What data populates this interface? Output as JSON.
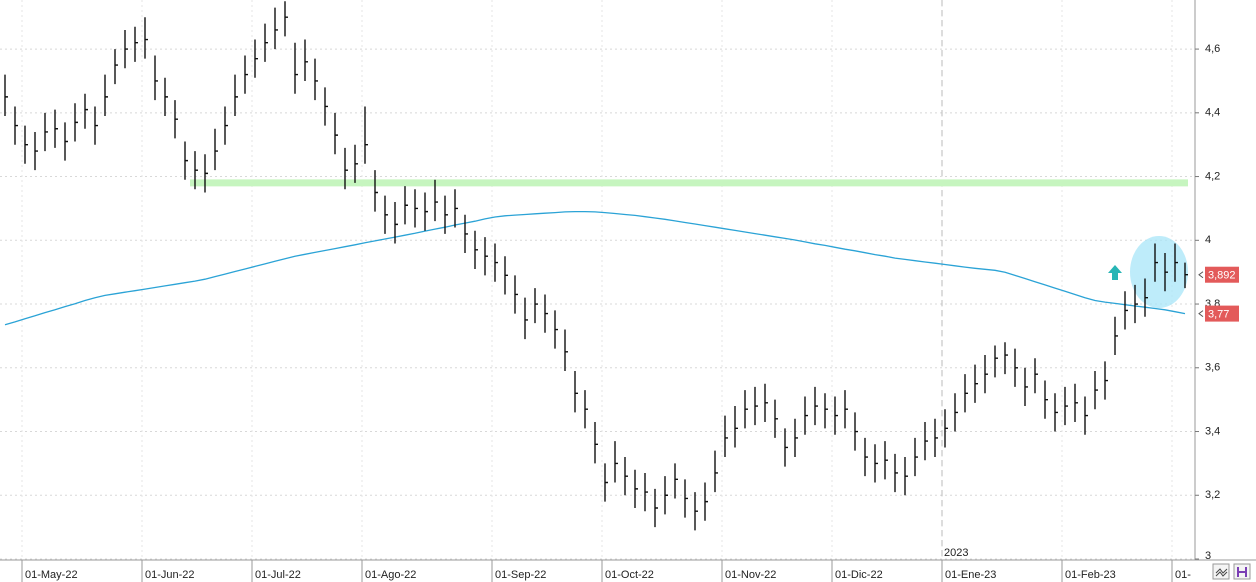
{
  "chart_data": {
    "type": "ohlc",
    "categories": [
      null,
      null,
      "01-May-22",
      null,
      null,
      null,
      null,
      null,
      null,
      null,
      null,
      null,
      null,
      null,
      "01-Jun-22",
      null,
      null,
      null,
      null,
      null,
      null,
      null,
      null,
      null,
      null,
      "01-Jul-22",
      null,
      null,
      null,
      null,
      null,
      null,
      null,
      null,
      null,
      null,
      "01-Ago-22",
      null,
      null,
      null,
      null,
      null,
      null,
      null,
      null,
      null,
      null,
      null,
      null,
      "01-Sep-22",
      null,
      null,
      null,
      null,
      null,
      null,
      null,
      null,
      null,
      null,
      "01-Oct-22",
      null,
      null,
      null,
      null,
      null,
      null,
      null,
      null,
      null,
      null,
      null,
      "01-Nov-22",
      null,
      null,
      null,
      null,
      null,
      null,
      null,
      null,
      null,
      null,
      "01-Dic-22",
      null,
      null,
      null,
      null,
      null,
      null,
      null,
      null,
      null,
      null,
      "01-Ene-23",
      null,
      null,
      null,
      null,
      null,
      null,
      null,
      null,
      null,
      null,
      null,
      "01-Feb-23",
      null,
      null,
      null,
      null,
      null,
      null,
      null,
      null,
      null,
      null,
      "01-",
      null
    ],
    "high": [
      4.52,
      4.42,
      4.36,
      4.34,
      4.4,
      4.41,
      4.37,
      4.43,
      4.46,
      4.42,
      4.52,
      4.6,
      4.66,
      4.67,
      4.7,
      4.58,
      4.51,
      4.44,
      4.31,
      4.28,
      4.27,
      4.35,
      4.42,
      4.52,
      4.58,
      4.63,
      4.68,
      4.73,
      4.75,
      4.62,
      4.63,
      4.57,
      4.48,
      4.4,
      4.29,
      4.3,
      4.42,
      4.22,
      4.14,
      4.12,
      4.17,
      4.16,
      4.15,
      4.19,
      4.14,
      4.16,
      4.08,
      4.03,
      4.01,
      3.99,
      3.95,
      3.89,
      3.82,
      3.85,
      3.83,
      3.78,
      3.72,
      3.59,
      3.53,
      3.43,
      3.3,
      3.37,
      3.32,
      3.28,
      3.27,
      3.22,
      3.26,
      3.3,
      3.25,
      3.21,
      3.24,
      3.34,
      3.45,
      3.48,
      3.53,
      3.54,
      3.55,
      3.5,
      3.41,
      3.44,
      3.51,
      3.54,
      3.52,
      3.51,
      3.53,
      3.46,
      3.38,
      3.36,
      3.37,
      3.33,
      3.32,
      3.38,
      3.43,
      3.44,
      3.47,
      3.52,
      3.58,
      3.61,
      3.64,
      3.67,
      3.68,
      3.66,
      3.6,
      3.63,
      3.56,
      3.52,
      3.54,
      3.55,
      3.51,
      3.59,
      3.62,
      3.76,
      3.84,
      3.86,
      3.88,
      3.99,
      3.96,
      3.99,
      3.93
    ],
    "low": [
      4.39,
      4.3,
      4.24,
      4.22,
      4.28,
      4.29,
      4.25,
      4.31,
      4.35,
      4.3,
      4.39,
      4.49,
      4.54,
      4.56,
      4.57,
      4.44,
      4.39,
      4.32,
      4.19,
      4.16,
      4.15,
      4.22,
      4.3,
      4.39,
      4.46,
      4.51,
      4.56,
      4.6,
      4.64,
      4.46,
      4.5,
      4.44,
      4.36,
      4.27,
      4.16,
      4.18,
      4.24,
      4.09,
      4.02,
      3.99,
      4.05,
      4.04,
      4.03,
      4.06,
      4.02,
      4.04,
      3.96,
      3.91,
      3.89,
      3.87,
      3.83,
      3.77,
      3.69,
      3.74,
      3.71,
      3.66,
      3.59,
      3.46,
      3.41,
      3.3,
      3.18,
      3.24,
      3.2,
      3.16,
      3.15,
      3.1,
      3.14,
      3.19,
      3.13,
      3.09,
      3.12,
      3.21,
      3.32,
      3.35,
      3.41,
      3.42,
      3.43,
      3.38,
      3.29,
      3.32,
      3.39,
      3.42,
      3.41,
      3.39,
      3.41,
      3.34,
      3.26,
      3.24,
      3.25,
      3.21,
      3.2,
      3.26,
      3.31,
      3.32,
      3.35,
      3.4,
      3.46,
      3.49,
      3.52,
      3.57,
      3.58,
      3.54,
      3.48,
      3.52,
      3.44,
      3.4,
      3.42,
      3.43,
      3.39,
      3.47,
      3.5,
      3.64,
      3.72,
      3.74,
      3.76,
      3.87,
      3.84,
      3.87,
      3.85
    ],
    "close": [
      4.45,
      4.36,
      4.3,
      4.28,
      4.34,
      4.35,
      4.31,
      4.37,
      4.41,
      4.36,
      4.45,
      4.55,
      4.6,
      4.62,
      4.63,
      4.5,
      4.45,
      4.38,
      4.25,
      4.22,
      4.21,
      4.28,
      4.36,
      4.45,
      4.52,
      4.57,
      4.62,
      4.66,
      4.7,
      4.52,
      4.56,
      4.5,
      4.42,
      4.33,
      4.22,
      4.24,
      4.3,
      4.15,
      4.08,
      4.05,
      4.11,
      4.1,
      4.09,
      4.12,
      4.08,
      4.1,
      4.02,
      3.97,
      3.95,
      3.93,
      3.89,
      3.83,
      3.75,
      3.8,
      3.77,
      3.72,
      3.65,
      3.52,
      3.47,
      3.36,
      3.24,
      3.3,
      3.26,
      3.22,
      3.21,
      3.16,
      3.2,
      3.25,
      3.19,
      3.15,
      3.18,
      3.27,
      3.38,
      3.41,
      3.47,
      3.48,
      3.49,
      3.44,
      3.35,
      3.38,
      3.45,
      3.48,
      3.47,
      3.45,
      3.47,
      3.4,
      3.32,
      3.3,
      3.31,
      3.27,
      3.26,
      3.32,
      3.37,
      3.38,
      3.41,
      3.46,
      3.52,
      3.55,
      3.58,
      3.63,
      3.64,
      3.6,
      3.54,
      3.58,
      3.5,
      3.46,
      3.48,
      3.49,
      3.45,
      3.53,
      3.56,
      3.7,
      3.78,
      3.8,
      3.82,
      3.93,
      3.9,
      3.93,
      3.892
    ],
    "color": "#111111",
    "moving_average": {
      "color": "#2ba3d6",
      "values": [
        3.735,
        3.744,
        3.754,
        3.763,
        3.773,
        3.782,
        3.792,
        3.801,
        3.811,
        3.82,
        3.827,
        3.832,
        3.837,
        3.842,
        3.847,
        3.852,
        3.857,
        3.862,
        3.867,
        3.872,
        3.878,
        3.886,
        3.894,
        3.902,
        3.91,
        3.918,
        3.926,
        3.934,
        3.942,
        3.95,
        3.956,
        3.962,
        3.968,
        3.974,
        3.98,
        3.986,
        3.992,
        3.998,
        4.004,
        4.01,
        4.016,
        4.022,
        4.029,
        4.035,
        4.041,
        4.048,
        4.054,
        4.06,
        4.067,
        4.073,
        4.077,
        4.079,
        4.081,
        4.083,
        4.085,
        4.087,
        4.089,
        4.09,
        4.09,
        4.089,
        4.087,
        4.084,
        4.081,
        4.078,
        4.074,
        4.07,
        4.066,
        4.061,
        4.056,
        4.051,
        4.046,
        4.041,
        4.036,
        4.031,
        4.026,
        4.021,
        4.016,
        4.011,
        4.006,
        4.001,
        3.995,
        3.989,
        3.984,
        3.978,
        3.972,
        3.967,
        3.961,
        3.955,
        3.95,
        3.944,
        3.94,
        3.936,
        3.932,
        3.928,
        3.924,
        3.92,
        3.916,
        3.912,
        3.909,
        3.906,
        3.9,
        3.89,
        3.88,
        3.87,
        3.86,
        3.85,
        3.84,
        3.83,
        3.82,
        3.811,
        3.806,
        3.802,
        3.798,
        3.794,
        3.79,
        3.786,
        3.782,
        3.776,
        3.77
      ]
    },
    "levels": [
      {
        "value": 4.18,
        "color": "#c6f5bf"
      }
    ],
    "price_markers": [
      {
        "value": 3.892,
        "label": "3,892",
        "color": "#e35a5a"
      },
      {
        "value": 3.77,
        "label": "3,77",
        "color": "#e35a5a"
      }
    ],
    "year_annotation": {
      "text": "2023",
      "at": "01-Ene-23"
    },
    "ylim": [
      3,
      4.754
    ],
    "yticks": [
      {
        "value": 3,
        "label": "3"
      },
      {
        "value": 3.2,
        "label": "3,2"
      },
      {
        "value": 3.4,
        "label": "3,4"
      },
      {
        "value": 3.6,
        "label": "3,6"
      },
      {
        "value": 3.8,
        "label": "3,8"
      },
      {
        "value": 4,
        "label": "4"
      },
      {
        "value": 4.2,
        "label": "4,2"
      },
      {
        "value": 4.4,
        "label": "4,4"
      },
      {
        "value": 4.6,
        "label": "4,6"
      }
    ],
    "grid": true
  }
}
